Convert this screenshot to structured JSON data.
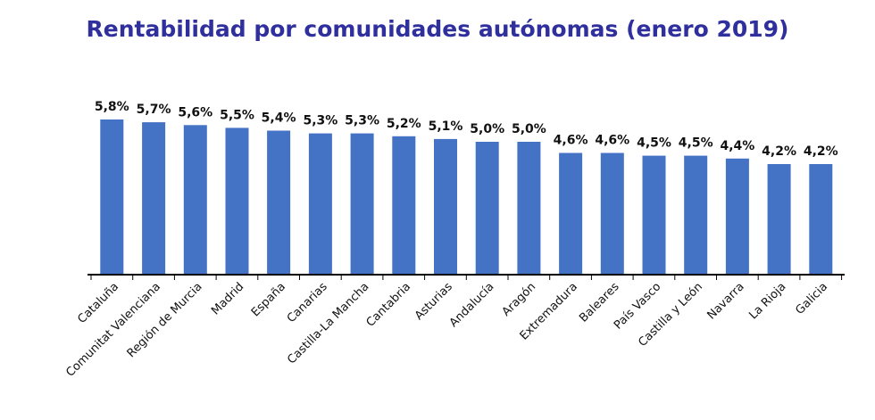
{
  "chart_data": {
    "type": "bar",
    "title": "Rentabilidad por comunidades autónomas (enero 2019)",
    "categories": [
      "Cataluña",
      "Comunitat Valenciana",
      "Región de Murcia",
      "Madrid",
      "España",
      "Canarias",
      "Castilla-La Mancha",
      "Cantabria",
      "Asturias",
      "Andalucía",
      "Aragón",
      "Extremadura",
      "Baleares",
      "País Vasco",
      "Castilla y León",
      "Navarra",
      "La Rioja",
      "Galicia"
    ],
    "values": [
      5.8,
      5.7,
      5.6,
      5.5,
      5.4,
      5.3,
      5.3,
      5.2,
      5.1,
      5.0,
      5.0,
      4.6,
      4.6,
      4.5,
      4.5,
      4.4,
      4.2,
      4.2
    ],
    "value_labels": [
      "5,8%",
      "5,7%",
      "5,6%",
      "5,5%",
      "5,4%",
      "5,3%",
      "5,3%",
      "5,2%",
      "5,1%",
      "5,0%",
      "5,0%",
      "4,6%",
      "4,6%",
      "4,5%",
      "4,5%",
      "4,4%",
      "4,2%",
      "4,2%"
    ],
    "xlabel": "",
    "ylabel": "",
    "colors": {
      "bar": "#4472c4",
      "title": "#2f2f9e",
      "axis": "#000000"
    },
    "grid": false,
    "legend": "none"
  }
}
